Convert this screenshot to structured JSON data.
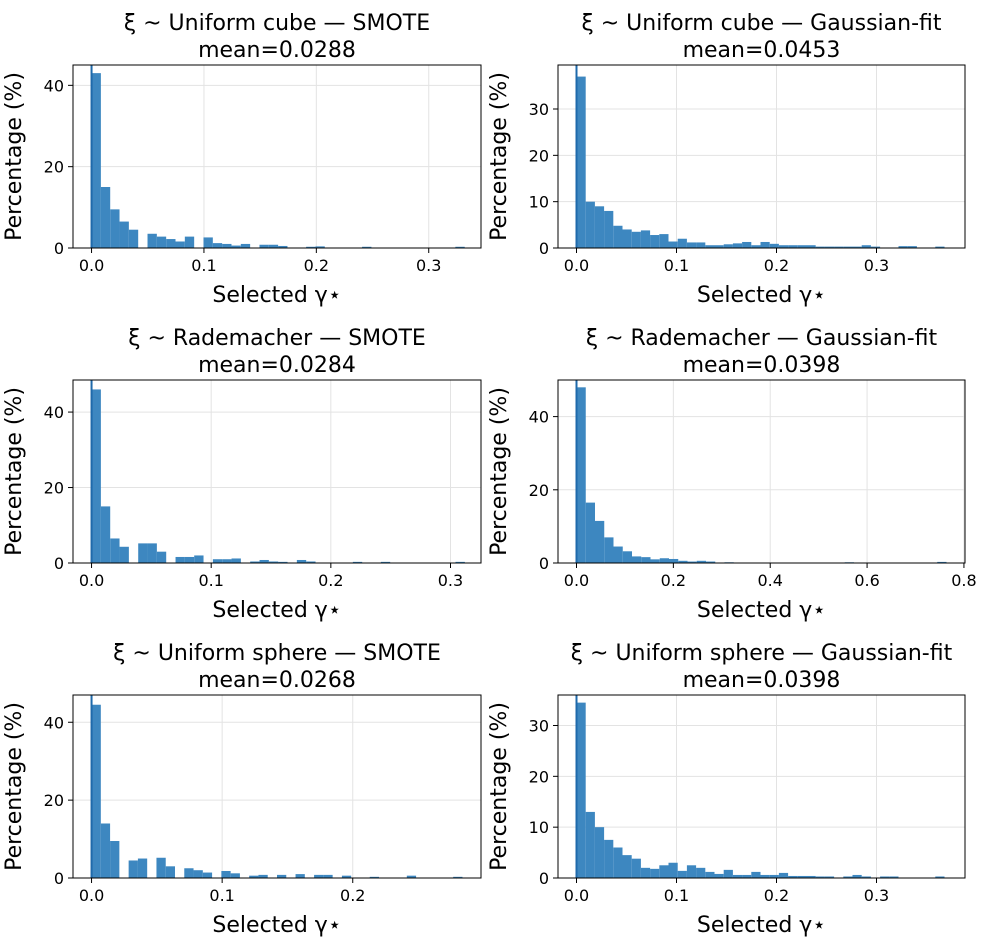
{
  "chart_data": [
    {
      "type": "bar",
      "title": "ξ ~ Uniform cube — SMOTE",
      "mean_label": "mean=0.0288",
      "xlabel": "Selected γ⋆",
      "ylabel": "Percentage (%)",
      "xlim": [
        -0.0165,
        0.3465
      ],
      "ylim": [
        0,
        45
      ],
      "xticks": [
        0.0,
        0.1,
        0.2,
        0.3
      ],
      "xtick_labels": [
        "0.0",
        "0.1",
        "0.2",
        "0.3"
      ],
      "yticks": [
        0,
        20,
        40
      ],
      "ytick_labels": [
        "0",
        "20",
        "40"
      ],
      "grid": true,
      "bin_width": 0.0083,
      "bin_start": 0.0,
      "values": [
        43,
        15,
        9.5,
        6.5,
        4.5,
        0,
        3.5,
        2.8,
        2.2,
        1.6,
        2.8,
        0,
        2.6,
        1.2,
        1,
        0.6,
        1,
        0,
        0.8,
        0.8,
        0.5,
        0,
        0,
        0.3,
        0.4,
        0,
        0,
        0,
        0,
        0.3,
        0,
        0,
        0,
        0,
        0,
        0,
        0,
        0,
        0,
        0.3
      ]
    },
    {
      "type": "bar",
      "title": "ξ ~ Uniform cube — Gaussian-fit",
      "mean_label": "mean=0.0453",
      "xlabel": "Selected γ⋆",
      "ylabel": "Percentage (%)",
      "xlim": [
        -0.0185,
        0.3885
      ],
      "ylim": [
        0,
        39.5
      ],
      "xticks": [
        0.0,
        0.1,
        0.2,
        0.3
      ],
      "xtick_labels": [
        "0.0",
        "0.1",
        "0.2",
        "0.3"
      ],
      "yticks": [
        0,
        10,
        20,
        30
      ],
      "ytick_labels": [
        "0",
        "10",
        "20",
        "30"
      ],
      "grid": true,
      "bin_width": 0.0092,
      "bin_start": 0.0,
      "values": [
        37,
        10,
        9,
        8,
        4.8,
        4,
        3.5,
        3.8,
        2.8,
        3,
        1.4,
        2,
        1.2,
        1.2,
        0.6,
        0.6,
        0.8,
        1,
        1.3,
        0.6,
        1.3,
        0.9,
        0.6,
        0.6,
        0.6,
        0.6,
        0.3,
        0.3,
        0.3,
        0.3,
        0.3,
        0.6,
        0.3,
        0,
        0,
        0.4,
        0.4,
        0,
        0,
        0.3
      ]
    },
    {
      "type": "bar",
      "title": "ξ ~ Rademacher — SMOTE",
      "mean_label": "mean=0.0284",
      "xlabel": "Selected γ⋆",
      "ylabel": "Percentage (%)",
      "xlim": [
        -0.0155,
        0.3255
      ],
      "ylim": [
        0,
        48.5
      ],
      "xticks": [
        0.0,
        0.1,
        0.2,
        0.3
      ],
      "xtick_labels": [
        "0.0",
        "0.1",
        "0.2",
        "0.3"
      ],
      "yticks": [
        0,
        20,
        40
      ],
      "ytick_labels": [
        "0",
        "20",
        "40"
      ],
      "grid": true,
      "bin_width": 0.0078,
      "bin_start": 0.0,
      "values": [
        46,
        15,
        6.5,
        4.3,
        0,
        5.2,
        5.2,
        3,
        0,
        1.6,
        1.6,
        2,
        0,
        1,
        1,
        1.2,
        0,
        0.4,
        0.8,
        0.4,
        0.3,
        0,
        0.8,
        0.4,
        0,
        0,
        0,
        0,
        0.3,
        0,
        0,
        0.3,
        0,
        0,
        0,
        0,
        0,
        0,
        0,
        0.3
      ]
    },
    {
      "type": "bar",
      "title": "ξ ~ Rademacher — Gaussian-fit",
      "mean_label": "mean=0.0398",
      "xlabel": "Selected γ⋆",
      "ylabel": "Percentage (%)",
      "xlim": [
        -0.0382,
        0.8022
      ],
      "ylim": [
        0,
        50
      ],
      "xticks": [
        0.0,
        0.2,
        0.4,
        0.6,
        0.8
      ],
      "xtick_labels": [
        "0.0",
        "0.2",
        "0.4",
        "0.6",
        "0.8"
      ],
      "yticks": [
        0,
        20,
        40
      ],
      "ytick_labels": [
        "0",
        "20",
        "40"
      ],
      "grid": true,
      "bin_width": 0.0191,
      "bin_start": 0.0,
      "values": [
        48,
        16.5,
        11.5,
        7,
        4.5,
        3.2,
        1.8,
        1.6,
        1,
        1.3,
        1.1,
        0.6,
        0.4,
        0.6,
        0.4,
        0,
        0.2,
        0,
        0,
        0,
        0,
        0,
        0,
        0,
        0,
        0,
        0,
        0,
        0,
        0.2,
        0,
        0,
        0,
        0,
        0,
        0,
        0,
        0,
        0,
        0.3
      ]
    },
    {
      "type": "bar",
      "title": "ξ ~ Uniform sphere — SMOTE",
      "mean_label": "mean=0.0268",
      "xlabel": "Selected γ⋆",
      "ylabel": "Percentage (%)",
      "xlim": [
        -0.0142,
        0.2982
      ],
      "ylim": [
        0,
        47
      ],
      "xticks": [
        0.0,
        0.1,
        0.2
      ],
      "xtick_labels": [
        "0.0",
        "0.1",
        "0.2"
      ],
      "yticks": [
        0,
        20,
        40
      ],
      "ytick_labels": [
        "0",
        "20",
        "40"
      ],
      "grid": true,
      "bin_width": 0.0071,
      "bin_start": 0.0,
      "values": [
        44.5,
        14,
        9.5,
        0,
        4.5,
        5,
        0,
        5.2,
        3,
        0,
        2.5,
        2,
        1.4,
        0,
        1.8,
        1.2,
        0,
        0.6,
        0.8,
        0,
        0.8,
        0,
        1,
        0,
        0.8,
        0.8,
        0,
        0.6,
        0,
        0,
        0.3,
        0,
        0,
        0,
        0.6,
        0,
        0,
        0,
        0,
        0.3
      ]
    },
    {
      "type": "bar",
      "title": "ξ ~ Uniform sphere — Gaussian-fit",
      "mean_label": "mean=0.0398",
      "xlabel": "Selected γ⋆",
      "ylabel": "Percentage (%)",
      "xlim": [
        -0.0185,
        0.3885
      ],
      "ylim": [
        0,
        36
      ],
      "xticks": [
        0.0,
        0.1,
        0.2,
        0.3
      ],
      "xtick_labels": [
        "0.0",
        "0.1",
        "0.2",
        "0.3"
      ],
      "yticks": [
        0,
        10,
        20,
        30
      ],
      "ytick_labels": [
        "0",
        "10",
        "20",
        "30"
      ],
      "grid": true,
      "bin_width": 0.0092,
      "bin_start": 0.0,
      "values": [
        34.5,
        13,
        10,
        7.5,
        6,
        4.5,
        3.8,
        2,
        1.8,
        2.5,
        3,
        1.4,
        2.5,
        2,
        1.2,
        0.8,
        1.6,
        0.6,
        0.6,
        1.2,
        0.6,
        0.6,
        1,
        0.4,
        0.4,
        0.4,
        0.3,
        0.3,
        0,
        0.3,
        0.6,
        0.3,
        0,
        0.3,
        0.3,
        0,
        0,
        0,
        0,
        0.3
      ]
    }
  ]
}
